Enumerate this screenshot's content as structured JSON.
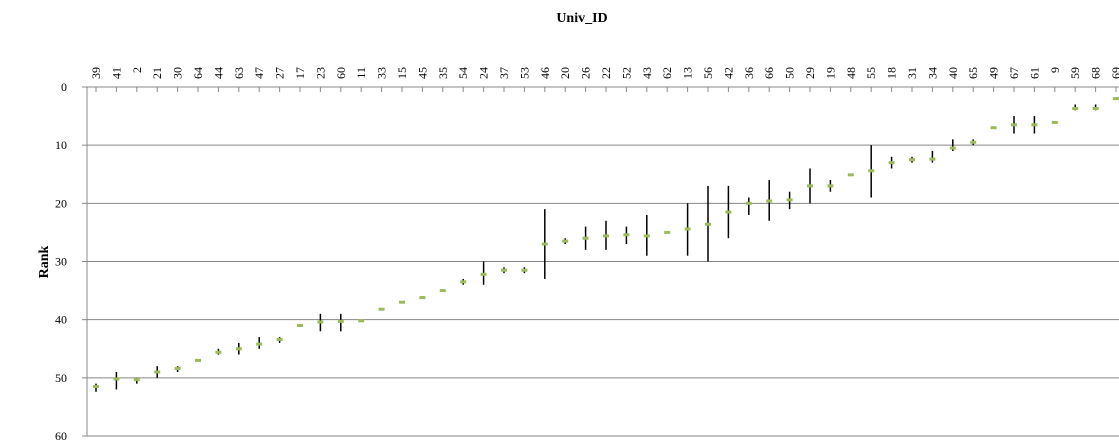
{
  "chart_data": {
    "type": "scatter",
    "title": "Univ_ID",
    "xlabel": "Univ_ID",
    "ylabel": "Rank",
    "ylim": [
      0,
      60
    ],
    "y_reversed": true,
    "x_axis_position": "top",
    "yticks": [
      0,
      10,
      20,
      30,
      40,
      50,
      60
    ],
    "grid": "horizontal",
    "colors": {
      "median": "#9bbb59",
      "range": "#000000",
      "grid": "#868686"
    },
    "categories": [
      "39",
      "41",
      "2",
      "21",
      "30",
      "64",
      "44",
      "63",
      "47",
      "27",
      "17",
      "23",
      "60",
      "11",
      "33",
      "15",
      "45",
      "35",
      "54",
      "24",
      "37",
      "53",
      "46",
      "20",
      "26",
      "22",
      "52",
      "43",
      "62",
      "13",
      "56",
      "42",
      "36",
      "66",
      "50",
      "29",
      "19",
      "48",
      "55",
      "18",
      "31",
      "34",
      "40",
      "65",
      "49",
      "67",
      "61",
      "9",
      "59",
      "68",
      "69"
    ],
    "values": [
      51.5,
      50.2,
      50.3,
      49.0,
      48.4,
      47.0,
      45.6,
      45.0,
      44.2,
      43.4,
      41.0,
      40.4,
      40.3,
      40.2,
      38.2,
      37.0,
      36.2,
      35.0,
      33.5,
      32.2,
      31.5,
      31.5,
      27.0,
      26.5,
      26.0,
      25.6,
      25.4,
      25.6,
      25.0,
      24.4,
      23.6,
      21.5,
      20.0,
      19.6,
      19.4,
      17.0,
      17.0,
      15.1,
      14.4,
      13.0,
      12.5,
      12.4,
      10.5,
      9.5,
      7.0,
      6.5,
      6.5,
      6.1,
      3.7,
      3.7,
      2.0
    ],
    "ranges": [
      [
        51,
        52.4
      ],
      [
        49,
        52
      ],
      [
        50,
        51
      ],
      [
        48,
        50
      ],
      [
        48,
        49
      ],
      [
        47,
        47
      ],
      [
        45,
        46
      ],
      [
        44,
        46
      ],
      [
        43,
        45
      ],
      [
        43,
        44
      ],
      [
        41,
        41
      ],
      [
        39,
        42
      ],
      [
        39,
        42
      ],
      [
        40,
        40
      ],
      [
        38,
        38
      ],
      [
        37,
        37
      ],
      [
        36,
        36
      ],
      [
        35,
        35
      ],
      [
        33,
        34
      ],
      [
        30,
        34
      ],
      [
        31,
        32
      ],
      [
        31,
        32
      ],
      [
        21,
        33
      ],
      [
        26,
        27
      ],
      [
        24,
        28
      ],
      [
        23,
        28
      ],
      [
        24,
        27
      ],
      [
        22,
        29
      ],
      [
        25,
        25
      ],
      [
        20,
        29
      ],
      [
        17,
        30
      ],
      [
        17,
        26
      ],
      [
        19,
        22
      ],
      [
        16,
        23
      ],
      [
        18,
        21
      ],
      [
        14,
        20
      ],
      [
        16,
        18
      ],
      [
        15,
        15
      ],
      [
        10,
        19
      ],
      [
        12,
        14
      ],
      [
        12,
        13
      ],
      [
        11,
        13
      ],
      [
        9,
        11
      ],
      [
        9,
        10
      ],
      [
        7,
        7
      ],
      [
        5,
        8
      ],
      [
        5,
        8
      ],
      [
        6,
        6
      ],
      [
        3,
        4
      ],
      [
        3,
        4
      ],
      [
        2,
        2
      ]
    ]
  }
}
